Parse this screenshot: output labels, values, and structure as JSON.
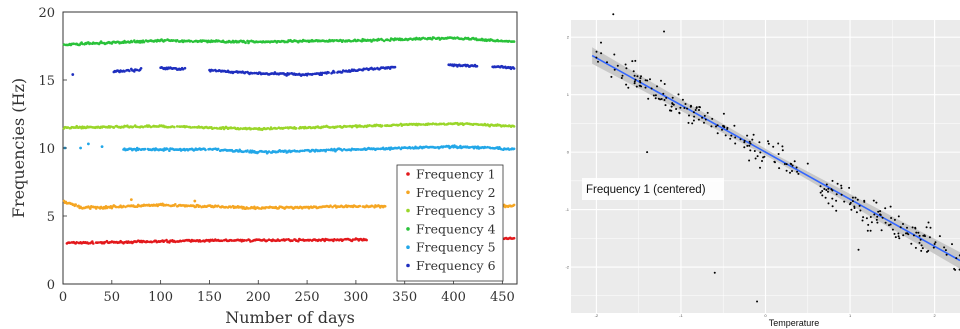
{
  "chart_data": [
    {
      "type": "scatter",
      "title": "",
      "xlabel": "Number of days",
      "ylabel": "Frequencies (Hz)",
      "xlim": [
        0,
        465
      ],
      "ylim": [
        0,
        20
      ],
      "xticks": [
        "0",
        "50",
        "100",
        "150",
        "200",
        "250",
        "300",
        "350",
        "400",
        "450"
      ],
      "yticks": [
        "0",
        "5",
        "10",
        "15",
        "20"
      ],
      "grid": false,
      "legend_position": "bottom-right",
      "series": [
        {
          "name": "Frequency 1",
          "color": "#e3191c",
          "start": 3,
          "end": 462,
          "level": [
            [
              0,
              3.0
            ],
            [
              150,
              3.2
            ],
            [
              300,
              3.25
            ],
            [
              465,
              3.35
            ]
          ],
          "gaps": [
            [
              311,
              430
            ]
          ],
          "spread": 0.1
        },
        {
          "name": "Frequency 2",
          "color": "#f5a623",
          "start": 1,
          "end": 462,
          "level": [
            [
              0,
              6.1
            ],
            [
              20,
              5.6
            ],
            [
              100,
              5.8
            ],
            [
              200,
              5.6
            ],
            [
              300,
              5.7
            ],
            [
              400,
              5.8
            ],
            [
              465,
              5.7
            ]
          ],
          "gaps": [
            [
              330,
              430
            ]
          ],
          "spread": 0.12
        },
        {
          "name": "Frequency 3",
          "color": "#9ad62a",
          "start": 1,
          "end": 462,
          "level": [
            [
              0,
              11.5
            ],
            [
              100,
              11.6
            ],
            [
              200,
              11.4
            ],
            [
              300,
              11.6
            ],
            [
              400,
              11.8
            ],
            [
              465,
              11.6
            ]
          ],
          "gaps": [],
          "spread": 0.1
        },
        {
          "name": "Frequency 4",
          "color": "#2ac23a",
          "start": 1,
          "end": 462,
          "level": [
            [
              0,
              17.6
            ],
            [
              100,
              17.9
            ],
            [
              200,
              17.8
            ],
            [
              300,
              17.9
            ],
            [
              400,
              18.1
            ],
            [
              465,
              17.8
            ]
          ],
          "gaps": [],
          "spread": 0.12
        },
        {
          "name": "Frequency 5",
          "color": "#22a7e8",
          "start": 62,
          "end": 462,
          "level": [
            [
              62,
              9.9
            ],
            [
              150,
              9.9
            ],
            [
              200,
              9.7
            ],
            [
              300,
              9.9
            ],
            [
              400,
              10.1
            ],
            [
              465,
              9.9
            ]
          ],
          "gaps": [],
          "spread": 0.12
        },
        {
          "name": "Frequency 6",
          "color": "#1f2fbf",
          "start": 52,
          "end": 462,
          "level": [
            [
              52,
              15.6
            ],
            [
              100,
              15.9
            ],
            [
              200,
              15.5
            ],
            [
              250,
              15.4
            ],
            [
              330,
              15.9
            ],
            [
              400,
              16.1
            ],
            [
              465,
              15.9
            ]
          ],
          "gaps": [
            [
              80,
              100
            ],
            [
              125,
              150
            ],
            [
              340,
              395
            ],
            [
              425,
              440
            ]
          ],
          "spread": 0.12
        }
      ],
      "outliers": [
        {
          "series": "Frequency 6",
          "x": 10,
          "y": 15.4
        },
        {
          "series": "Frequency 5",
          "x": 2,
          "y": 10.0
        },
        {
          "series": "Frequency 5",
          "x": 18,
          "y": 10.0
        },
        {
          "series": "Frequency 5",
          "x": 26,
          "y": 10.3
        },
        {
          "series": "Frequency 5",
          "x": 40,
          "y": 10.1
        },
        {
          "series": "Frequency 2",
          "x": 70,
          "y": 6.2
        },
        {
          "series": "Frequency 2",
          "x": 135,
          "y": 6.1
        },
        {
          "series": "Frequency 1",
          "x": 380,
          "y": 3.3
        },
        {
          "series": "Frequency 1",
          "x": 420,
          "y": 3.4
        }
      ]
    },
    {
      "type": "scatter",
      "title": "",
      "xlabel": "Temperature",
      "ylabel": "Frequency 1 (centered)",
      "xlim": [
        -2.3,
        2.3
      ],
      "ylim": [
        -2.8,
        2.3
      ],
      "grid": true,
      "background": "#ebebeb",
      "point_color": "#000000",
      "fit": {
        "type": "linear",
        "slope": -0.82,
        "intercept": 0.0,
        "color": "#3366ff",
        "band_color": "#c4c4c4"
      },
      "clusters": [
        {
          "x_range": [
            -2.0,
            0.4
          ],
          "count": 150,
          "noise": 0.28
        },
        {
          "x_range": [
            0.65,
            2.3
          ],
          "count": 115,
          "noise": 0.3
        }
      ],
      "outliers": [
        {
          "x": -0.6,
          "y": -2.1
        },
        {
          "x": -0.1,
          "y": -2.6
        },
        {
          "x": 1.1,
          "y": -1.7
        },
        {
          "x": 0.2,
          "y": 0.1
        },
        {
          "x": -1.4,
          "y": 0.0
        },
        {
          "x": -1.2,
          "y": 2.1
        },
        {
          "x": -1.8,
          "y": 2.4
        },
        {
          "x": 2.0,
          "y": -1.6
        },
        {
          "x": 0.5,
          "y": -0.2
        }
      ]
    }
  ]
}
